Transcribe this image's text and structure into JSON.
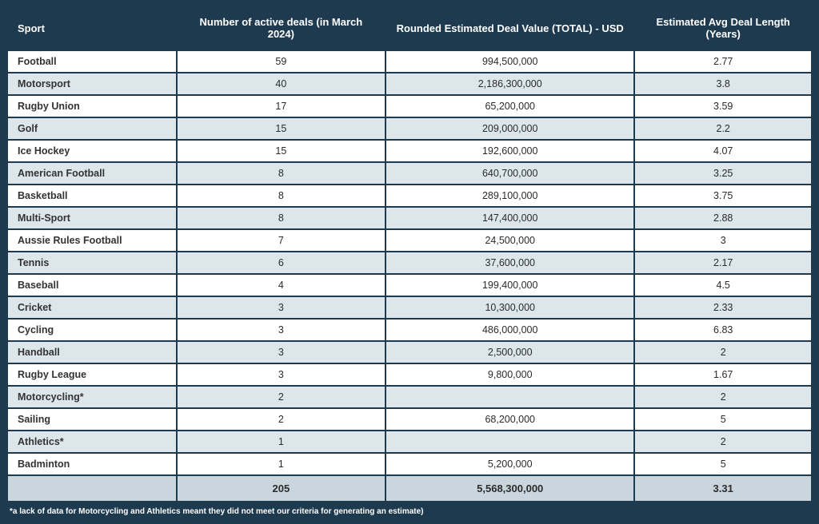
{
  "table": {
    "columns": [
      {
        "key": "sport",
        "label": "Sport",
        "align": "left"
      },
      {
        "key": "deals",
        "label": "Number of active deals (in March 2024)",
        "align": "center"
      },
      {
        "key": "value",
        "label": "Rounded Estimated Deal Value (TOTAL) - USD",
        "align": "center"
      },
      {
        "key": "length",
        "label": "Estimated Avg Deal Length (Years)",
        "align": "center"
      }
    ],
    "rows": [
      {
        "sport": "Football",
        "deals": "59",
        "value": "994,500,000",
        "length": "2.77"
      },
      {
        "sport": "Motorsport",
        "deals": "40",
        "value": "2,186,300,000",
        "length": "3.8"
      },
      {
        "sport": "Rugby Union",
        "deals": "17",
        "value": "65,200,000",
        "length": "3.59"
      },
      {
        "sport": "Golf",
        "deals": "15",
        "value": "209,000,000",
        "length": "2.2"
      },
      {
        "sport": "Ice Hockey",
        "deals": "15",
        "value": "192,600,000",
        "length": "4.07"
      },
      {
        "sport": "American Football",
        "deals": "8",
        "value": "640,700,000",
        "length": "3.25"
      },
      {
        "sport": "Basketball",
        "deals": "8",
        "value": "289,100,000",
        "length": "3.75"
      },
      {
        "sport": "Multi-Sport",
        "deals": "8",
        "value": "147,400,000",
        "length": "2.88"
      },
      {
        "sport": "Aussie Rules Football",
        "deals": "7",
        "value": "24,500,000",
        "length": "3"
      },
      {
        "sport": "Tennis",
        "deals": "6",
        "value": "37,600,000",
        "length": "2.17"
      },
      {
        "sport": "Baseball",
        "deals": "4",
        "value": "199,400,000",
        "length": "4.5"
      },
      {
        "sport": "Cricket",
        "deals": "3",
        "value": "10,300,000",
        "length": "2.33"
      },
      {
        "sport": "Cycling",
        "deals": "3",
        "value": "486,000,000",
        "length": "6.83"
      },
      {
        "sport": "Handball",
        "deals": "3",
        "value": "2,500,000",
        "length": "2"
      },
      {
        "sport": "Rugby League",
        "deals": "3",
        "value": "9,800,000",
        "length": "1.67"
      },
      {
        "sport": "Motorcycling*",
        "deals": "2",
        "value": "",
        "length": "2"
      },
      {
        "sport": "Sailing",
        "deals": "2",
        "value": "68,200,000",
        "length": "5"
      },
      {
        "sport": "Athletics*",
        "deals": "1",
        "value": "",
        "length": "2"
      },
      {
        "sport": "Badminton",
        "deals": "1",
        "value": "5,200,000",
        "length": "5"
      }
    ],
    "totals": {
      "sport": "",
      "deals": "205",
      "value": "5,568,300,000",
      "length": "3.31"
    },
    "footnote": "*a lack of data for Motorcycling and Athletics meant they did not meet our criteria for generating an estimate)",
    "colors": {
      "header_bg": "#1e3a4f",
      "header_text": "#ffffff",
      "row_odd_bg": "#ffffff",
      "row_even_bg": "#dce6eb",
      "totals_bg": "#c9d6dd",
      "text": "#2b2b2b",
      "border": "#1e3a4f"
    }
  }
}
